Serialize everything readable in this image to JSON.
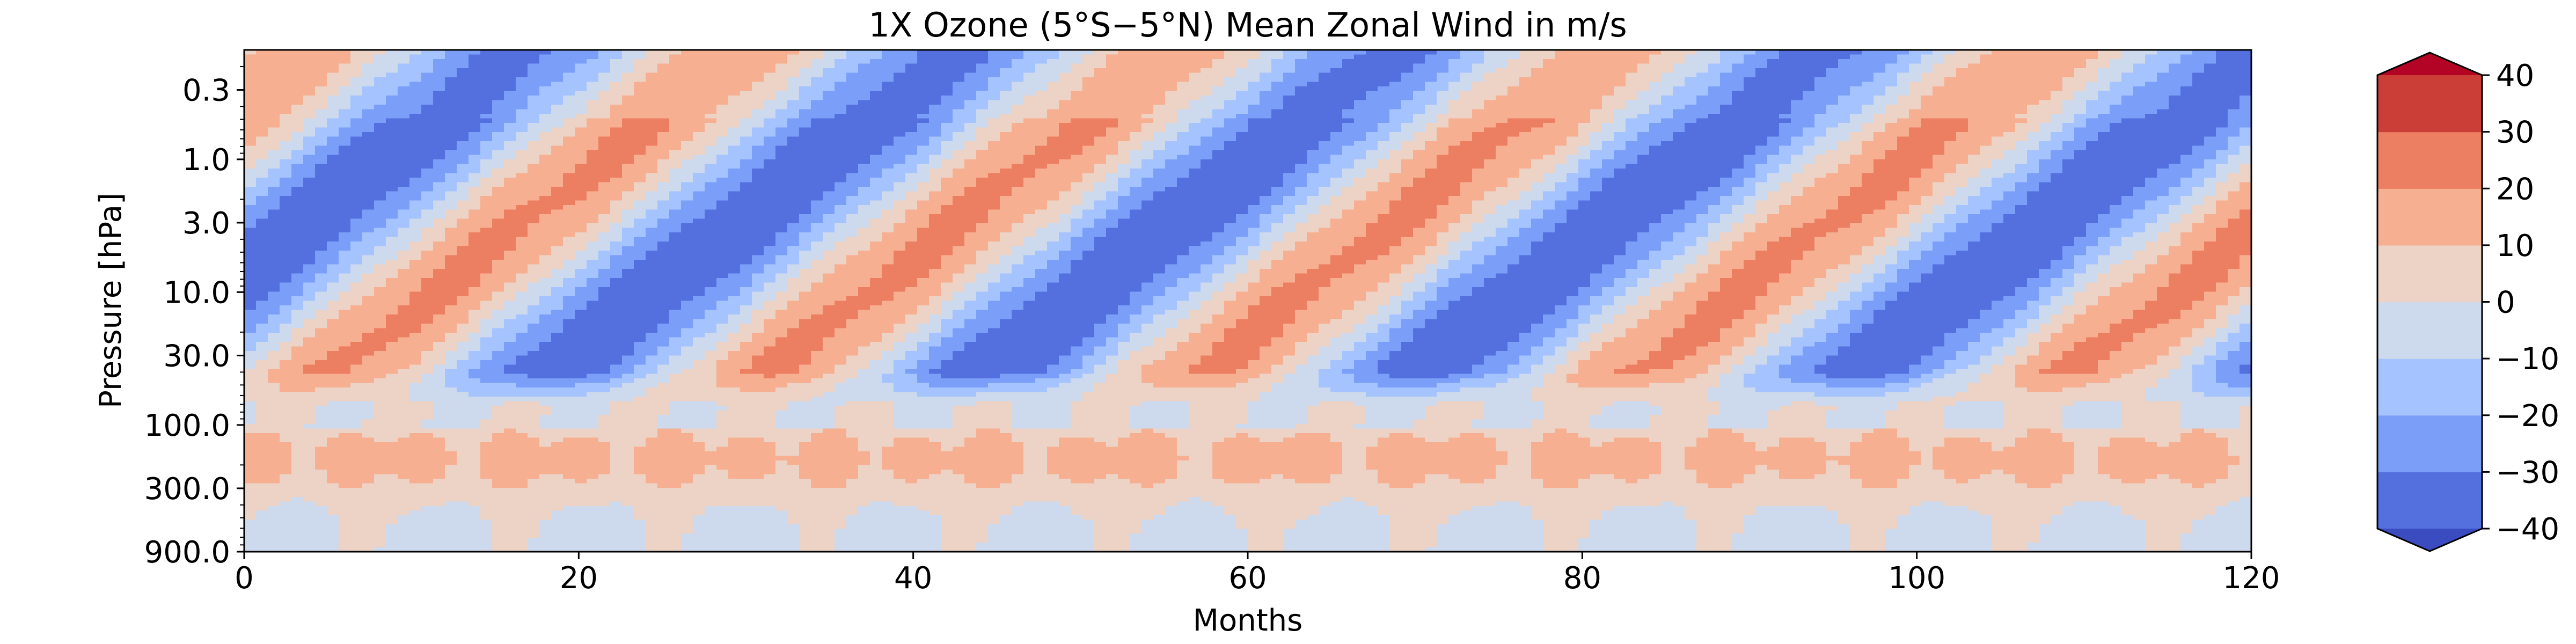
{
  "chart_data": {
    "type": "heatmap",
    "title": "1X Ozone (5$^\\circ$S$-$5$^\\circ$N) Mean Zonal Wind in m/s",
    "title_display": "1X Ozone (5°S−5°N) Mean Zonal Wind in m/s",
    "xlabel": "Months",
    "ylabel": "Pressure [hPa]",
    "xlim": [
      0,
      120
    ],
    "ylim": [
      900,
      0.15
    ],
    "y_scale": "log",
    "x_ticks": [
      0,
      20,
      40,
      60,
      80,
      100,
      120
    ],
    "x_tick_labels": [
      "0",
      "20",
      "40",
      "60",
      "80",
      "100",
      "120"
    ],
    "y_ticks": [
      0.3,
      1.0,
      3.0,
      10.0,
      30.0,
      100.0,
      300.0,
      900.0
    ],
    "y_tick_labels": [
      "0.3",
      "1.0",
      "3.0",
      "10.0",
      "30.0",
      "100.0",
      "300.0",
      "900.0"
    ],
    "grid": false,
    "colorbar": {
      "levels": [
        -40,
        -30,
        -20,
        -10,
        0,
        10,
        20,
        30,
        40
      ],
      "tick_labels": [
        "−40",
        "−30",
        "−20",
        "−10",
        "0",
        "10",
        "20",
        "30",
        "40"
      ],
      "extend": "both",
      "colors": [
        "#3b4cc0",
        "#5470de",
        "#7b9ff9",
        "#a5c3fe",
        "#cdd9ec",
        "#ecd3c5",
        "#f7af91",
        "#ec7e62",
        "#cb3e38",
        "#b40426"
      ]
    },
    "qbo_period_months": 26,
    "upper_phase_months": [
      3,
      29,
      55,
      81,
      107
    ],
    "lower_jet_hpa": [
      130,
      250
    ],
    "lower_jet_max_ms": 20
  }
}
